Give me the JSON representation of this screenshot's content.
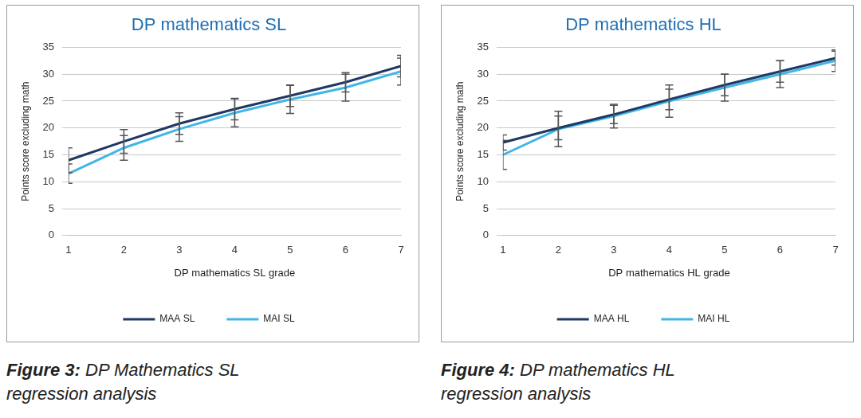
{
  "chart_data": [
    {
      "type": "line",
      "title": "DP mathematics SL",
      "x_label": "DP mathematics SL grade",
      "y_label": "Points score excluding math",
      "categories": [
        1,
        2,
        3,
        4,
        5,
        6,
        7
      ],
      "series": [
        {
          "name": "MAA SL",
          "color": "#1f3864",
          "values": [
            14,
            17.5,
            20.8,
            23.5,
            26,
            28.5,
            31.5
          ],
          "errors": [
            2.3,
            2.2,
            2.0,
            2.0,
            2.0,
            1.8,
            2.0
          ]
        },
        {
          "name": "MAI SL",
          "color": "#41b6e6",
          "values": [
            11.5,
            16.3,
            19.8,
            22.8,
            25.3,
            27.5,
            30.5
          ],
          "errors": [
            1.8,
            2.3,
            2.3,
            2.6,
            2.6,
            2.5,
            2.5
          ]
        }
      ],
      "ylim": [
        0,
        35
      ],
      "yticks": [
        0,
        5,
        10,
        15,
        20,
        25,
        30,
        35
      ],
      "grid": true,
      "legend": "bottom"
    },
    {
      "type": "line",
      "title": "DP mathematics HL",
      "x_label": "DP mathematics HL grade",
      "y_label": "Points score excluding math",
      "categories": [
        1,
        2,
        3,
        4,
        5,
        6,
        7
      ],
      "series": [
        {
          "name": "MAA HL",
          "color": "#1f3864",
          "values": [
            17.3,
            20,
            22.5,
            25.3,
            28,
            30.5,
            33
          ],
          "errors": [
            1.4,
            2.2,
            1.7,
            1.9,
            2.0,
            2.0,
            1.3
          ]
        },
        {
          "name": "MAI HL",
          "color": "#41b6e6",
          "values": [
            15,
            19.8,
            22.2,
            25,
            27.5,
            30,
            32.5
          ],
          "errors": [
            2.7,
            3.3,
            2.2,
            3.0,
            2.5,
            2.5,
            2.0
          ]
        }
      ],
      "ylim": [
        0,
        35
      ],
      "yticks": [
        0,
        5,
        10,
        15,
        20,
        25,
        30,
        35
      ],
      "grid": true,
      "legend": "bottom"
    }
  ],
  "captions": [
    {
      "label": "Figure 3:",
      "text": "DP Mathematics SL regression analysis"
    },
    {
      "label": "Figure 4:",
      "text": "DP mathematics HL regression analysis"
    }
  ]
}
